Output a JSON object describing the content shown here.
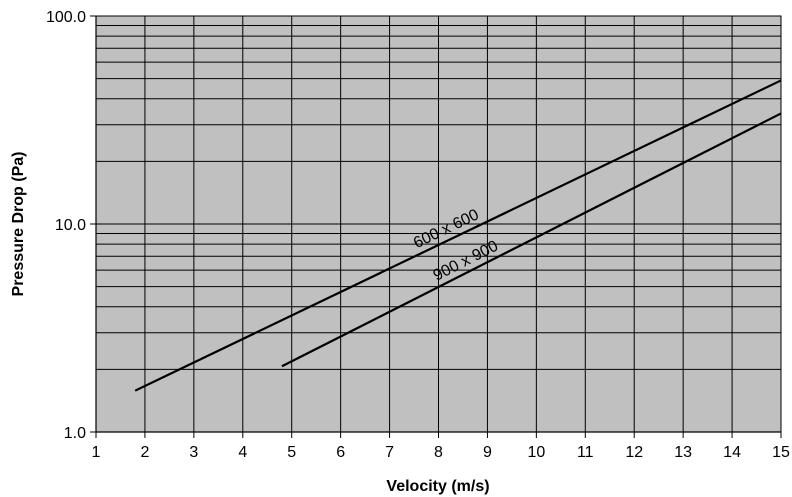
{
  "chart_data": {
    "type": "line",
    "title": "",
    "xlabel": "Velocity (m/s)",
    "ylabel": "Pressure Drop (Pa)",
    "xlim": [
      1,
      15
    ],
    "ylim": [
      1.0,
      100.0
    ],
    "yscale": "log",
    "grid": true,
    "legend": "none",
    "x_ticks": [
      "1",
      "2",
      "3",
      "4",
      "5",
      "6",
      "7",
      "8",
      "9",
      "10",
      "11",
      "12",
      "13",
      "14",
      "15"
    ],
    "y_ticks": [
      "1.0",
      "10.0",
      "100.0"
    ],
    "plot_background": "#c0c0c0",
    "line_color": "#000000",
    "series": [
      {
        "name": "600 x 600",
        "x": [
          1.8,
          15
        ],
        "y": [
          1.58,
          49
        ]
      },
      {
        "name": "900 x 900",
        "x": [
          4.8,
          15
        ],
        "y": [
          2.07,
          34
        ]
      }
    ]
  }
}
